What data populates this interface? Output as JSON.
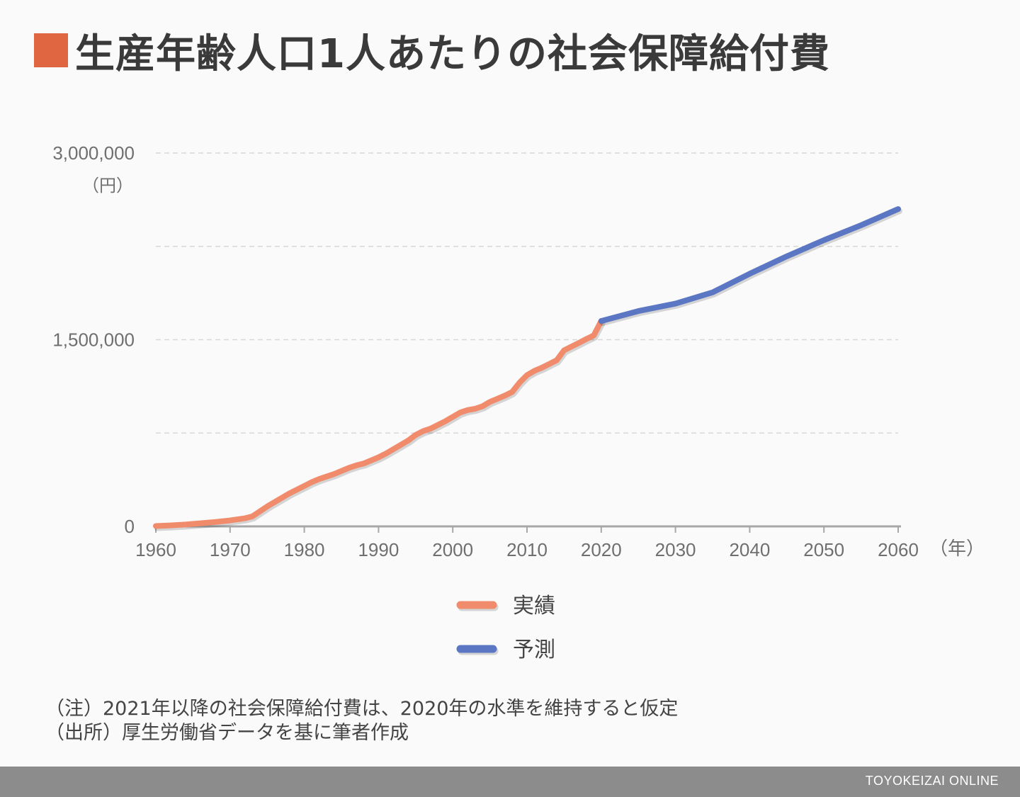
{
  "colors": {
    "title_marker": "#e06642",
    "actual": "#f08b6c",
    "forecast": "#5b76c3",
    "grid": "#d8d8d8",
    "axis": "#a7a7a7",
    "tick_text": "#6f6f6f",
    "footer_bg": "#8c8c8c"
  },
  "title": "生産年齢人口1人あたりの社会保障給付費",
  "chart_data": {
    "type": "line",
    "y_unit_label": "（円）",
    "x_unit_label": "（年）",
    "xlim": [
      1960,
      2060
    ],
    "ylim": [
      0,
      3000000
    ],
    "x_ticks": [
      1960,
      1970,
      1980,
      1990,
      2000,
      2010,
      2020,
      2030,
      2040,
      2050,
      2060
    ],
    "x_tick_labels": [
      "1960",
      "1970",
      "1980",
      "1990",
      "2000",
      "2010",
      "2020",
      "2030",
      "2040",
      "2050",
      "2060"
    ],
    "y_ticks": [
      0,
      1500000,
      3000000
    ],
    "y_tick_labels": [
      "0",
      "1,500,000",
      "3,000,000"
    ],
    "y_gridlines": [
      750000,
      1500000,
      2250000,
      3000000
    ],
    "legend_position": "bottom-center",
    "series": [
      {
        "name": "実績",
        "color": "#f08b6c",
        "x": [
          1960,
          1962,
          1964,
          1966,
          1968,
          1970,
          1972,
          1973,
          1974,
          1975,
          1976,
          1977,
          1978,
          1979,
          1980,
          1981,
          1982,
          1983,
          1984,
          1985,
          1986,
          1987,
          1988,
          1989,
          1990,
          1991,
          1992,
          1993,
          1994,
          1995,
          1996,
          1997,
          1998,
          1999,
          2000,
          2001,
          2002,
          2003,
          2004,
          2005,
          2006,
          2007,
          2008,
          2009,
          2010,
          2011,
          2012,
          2013,
          2014,
          2015,
          2016,
          2017,
          2018,
          2019,
          2020
        ],
        "y": [
          3000,
          8000,
          15000,
          25000,
          35000,
          48000,
          65000,
          80000,
          120000,
          160000,
          195000,
          230000,
          265000,
          295000,
          325000,
          355000,
          380000,
          400000,
          420000,
          445000,
          470000,
          490000,
          505000,
          530000,
          555000,
          585000,
          620000,
          655000,
          690000,
          735000,
          765000,
          785000,
          815000,
          845000,
          880000,
          915000,
          935000,
          945000,
          965000,
          1000000,
          1025000,
          1050000,
          1080000,
          1155000,
          1215000,
          1250000,
          1275000,
          1305000,
          1335000,
          1415000,
          1445000,
          1475000,
          1505000,
          1535000,
          1650000
        ]
      },
      {
        "name": "予測",
        "color": "#5b76c3",
        "x": [
          2020,
          2025,
          2030,
          2035,
          2040,
          2045,
          2050,
          2055,
          2060
        ],
        "y": [
          1650000,
          1730000,
          1790000,
          1880000,
          2030000,
          2170000,
          2300000,
          2420000,
          2550000
        ]
      }
    ]
  },
  "notes": [
    "（注）2021年以降の社会保障給付費は、2020年の水準を維持すると仮定",
    "（出所）厚生労働省データを基に筆者作成"
  ],
  "footer": {
    "brand": "TOYOKEIZAI ONLINE"
  }
}
